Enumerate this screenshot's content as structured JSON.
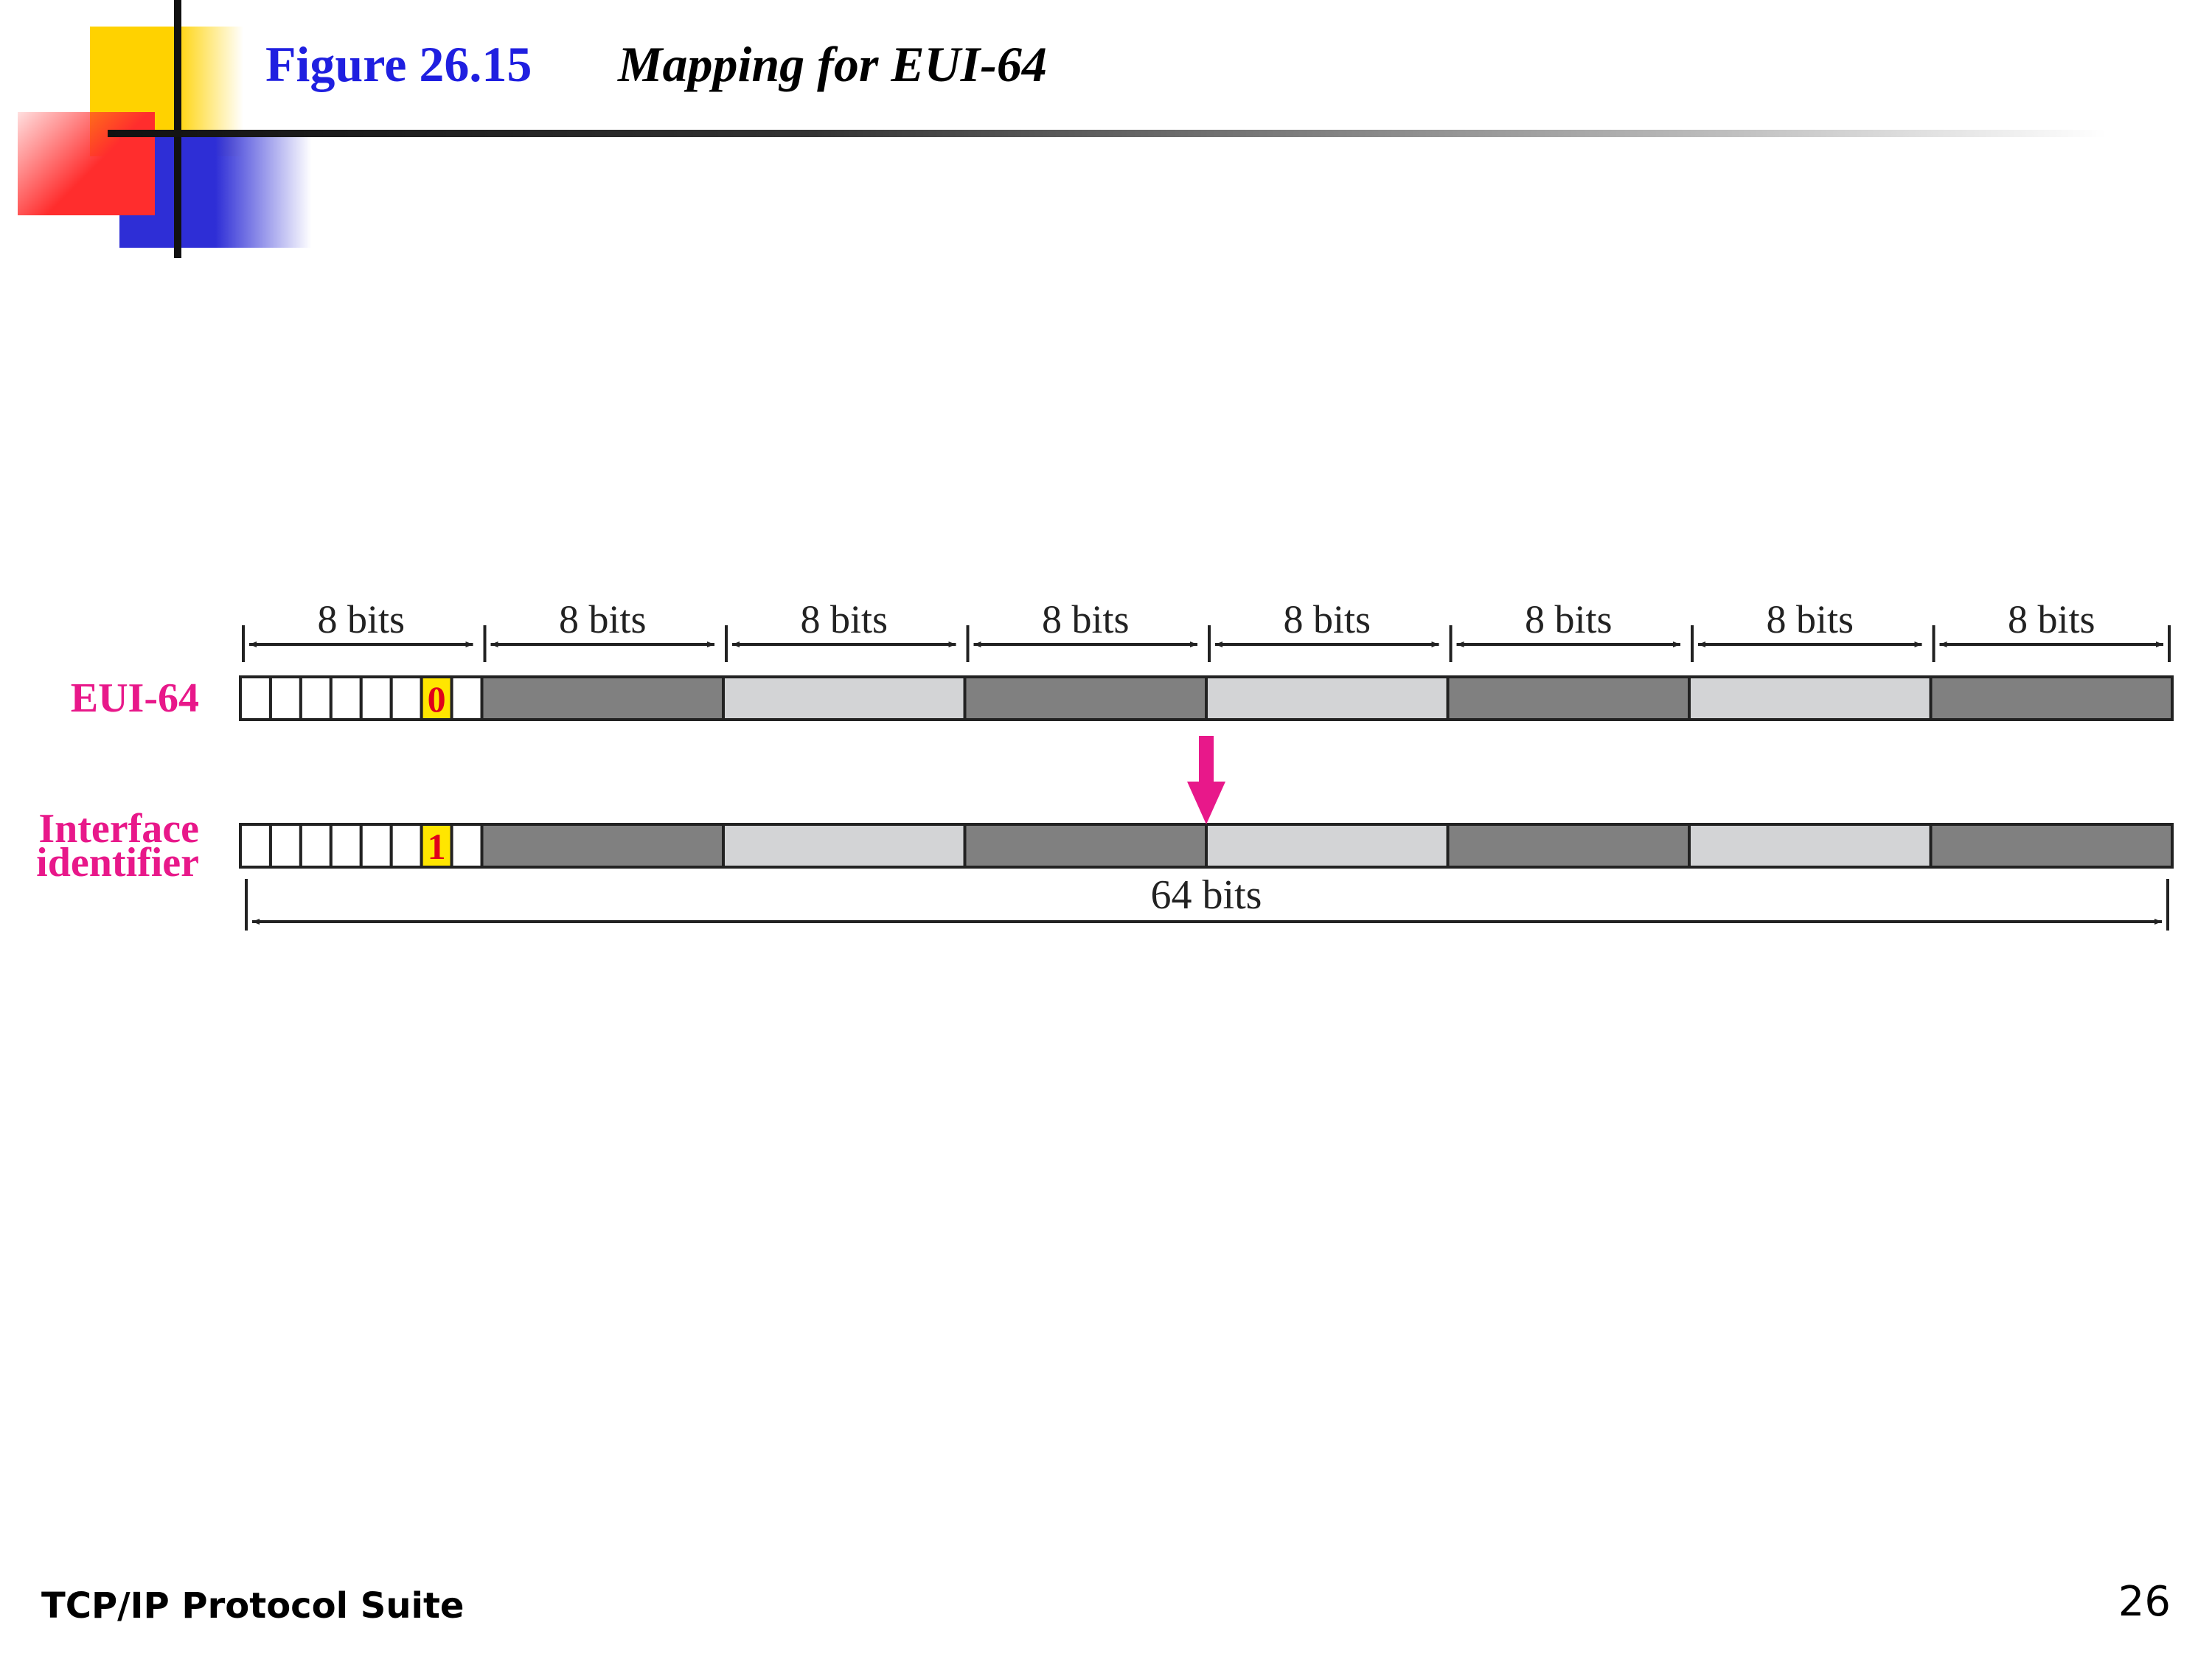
{
  "header": {
    "figure_number": "Figure 26.15",
    "figure_caption": "Mapping for EUI-64"
  },
  "diagram": {
    "byte_label": "8 bits",
    "byte_count": 8,
    "rows": [
      {
        "label_lines": [
          "EUI-64"
        ],
        "flag_bit": "0"
      },
      {
        "label_lines": [
          "Interface",
          "identifier"
        ],
        "flag_bit": "1"
      }
    ],
    "total_label": "64 bits",
    "colors": {
      "row_label": "#e8188a",
      "arrow": "#e8188a",
      "dark_byte": "#808080",
      "light_byte": "#d3d4d6",
      "flag_bg": "#ffe600",
      "flag_text": "#e0001a"
    }
  },
  "footer": {
    "suite": "TCP/IP Protocol Suite",
    "page_number": "26"
  }
}
